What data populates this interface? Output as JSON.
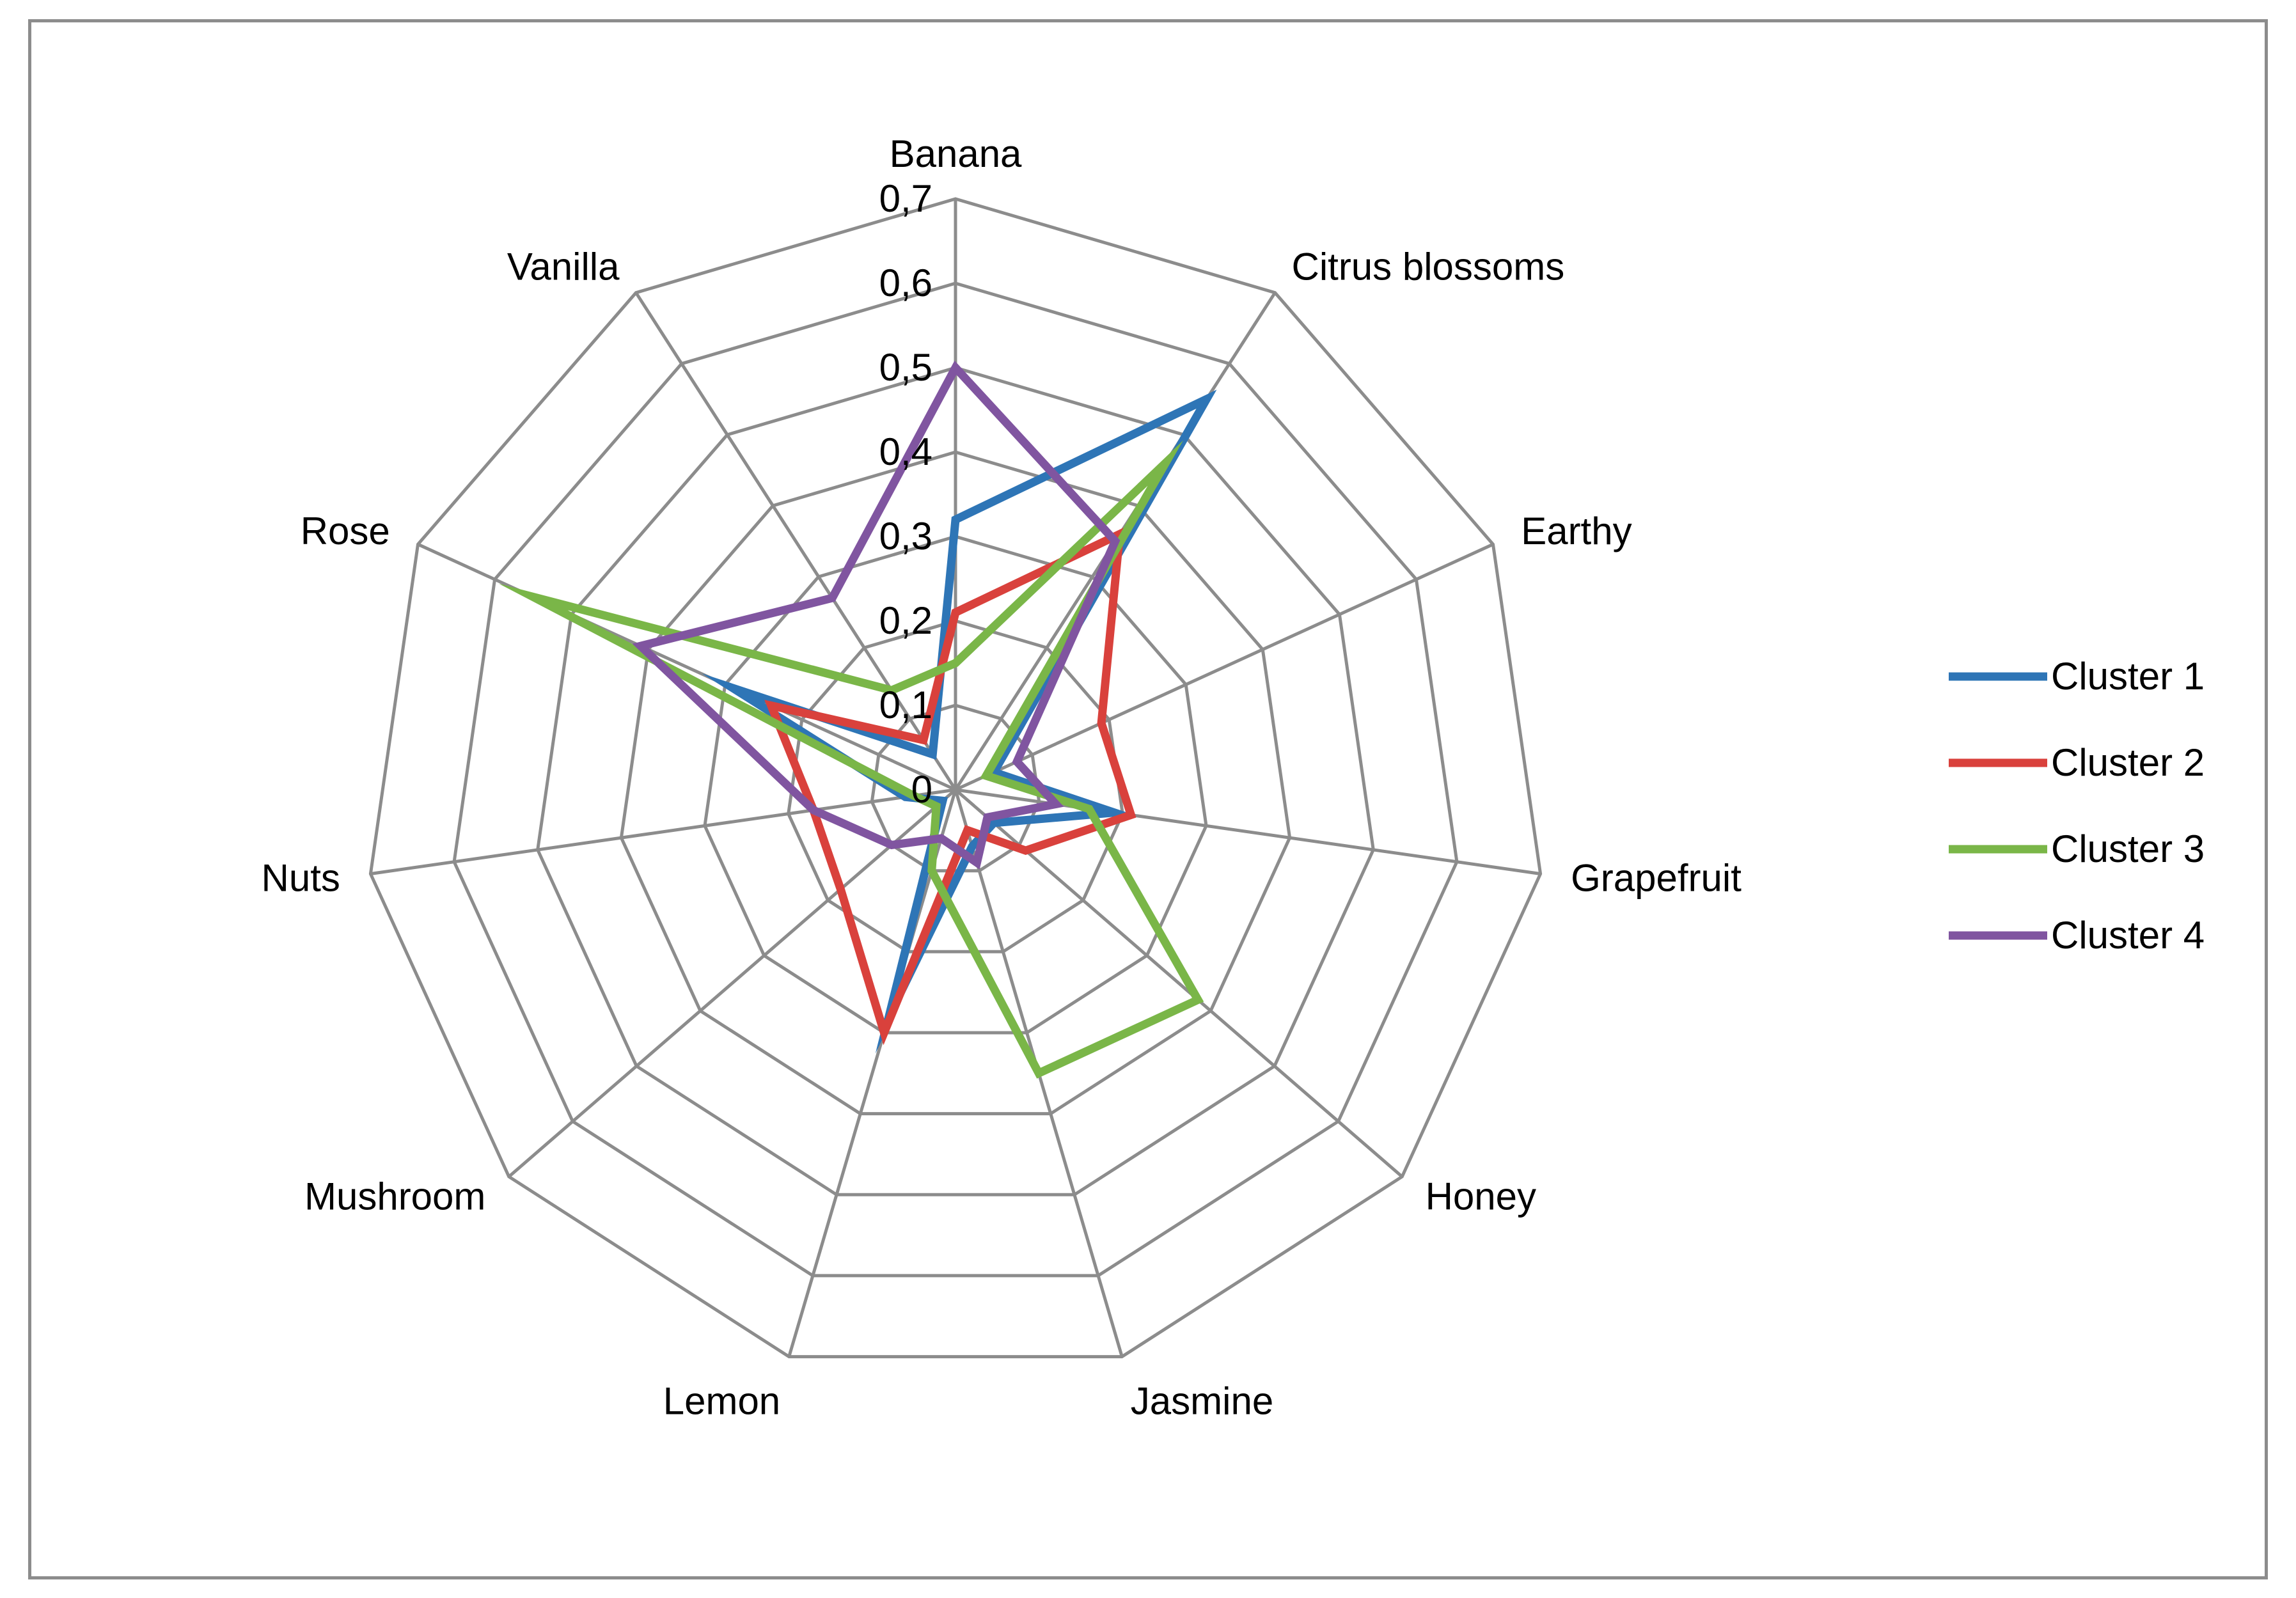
{
  "chart_data": {
    "type": "radar",
    "categories": [
      "Banana",
      "Citrus blossoms",
      "Earthy",
      "Grapefruit",
      "Honey",
      "Jasmine",
      "Lemon",
      "Mushroom",
      "Nuts",
      "Rose",
      "Vanilla"
    ],
    "rlim": [
      0,
      0.7
    ],
    "ticks": [
      "0",
      "0,1",
      "0,2",
      "0,3",
      "0,4",
      "0,5",
      "0,6",
      "0,7"
    ],
    "series": [
      {
        "name": "Cluster 1",
        "color": "#2e75b6",
        "values": [
          0.32,
          0.55,
          0.05,
          0.19,
          0.06,
          0.07,
          0.28,
          0.02,
          0.06,
          0.29,
          0.05
        ]
      },
      {
        "name": "Cluster 2",
        "color": "#d9413c",
        "values": [
          0.21,
          0.36,
          0.19,
          0.21,
          0.11,
          0.05,
          0.3,
          0.18,
          0.17,
          0.24,
          0.07
        ]
      },
      {
        "name": "Cluster 3",
        "color": "#7ab648",
        "values": [
          0.15,
          0.46,
          0.04,
          0.16,
          0.38,
          0.35,
          0.1,
          0.03,
          0.05,
          0.55,
          0.14
        ]
      },
      {
        "name": "Cluster 4",
        "color": "#8055a0",
        "values": [
          0.5,
          0.35,
          0.08,
          0.12,
          0.05,
          0.09,
          0.06,
          0.1,
          0.17,
          0.41,
          0.27
        ]
      }
    ],
    "grid": true,
    "legend": "right"
  }
}
